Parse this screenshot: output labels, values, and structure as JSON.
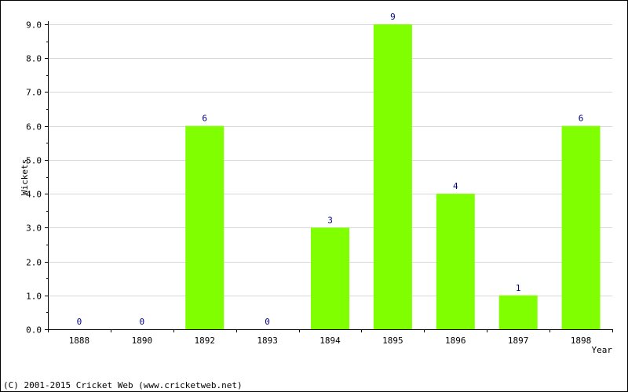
{
  "chart_data": {
    "type": "bar",
    "categories": [
      "1888",
      "1890",
      "1892",
      "1893",
      "1894",
      "1895",
      "1896",
      "1897",
      "1898"
    ],
    "values": [
      0,
      0,
      6,
      0,
      3,
      9,
      4,
      1,
      6
    ],
    "data_labels": [
      "0",
      "0",
      "6",
      "0",
      "3",
      "9",
      "4",
      "1",
      "6"
    ],
    "xlabel": "Year",
    "ylabel": "Wickets",
    "ylim": [
      0,
      9
    ],
    "yticks": [
      0,
      1,
      2,
      3,
      4,
      5,
      6,
      7,
      8,
      9
    ],
    "ytick_labels": [
      "0.0",
      "1.0",
      "2.0",
      "3.0",
      "4.0",
      "5.0",
      "6.0",
      "7.0",
      "8.0",
      "9.0"
    ],
    "grid": true,
    "bar_color": "#80ff00",
    "label_color": "#000080",
    "grid_color": "#d8d8d8"
  },
  "footer": {
    "copyright": "(C) 2001-2015 Cricket Web (www.cricketweb.net)"
  }
}
